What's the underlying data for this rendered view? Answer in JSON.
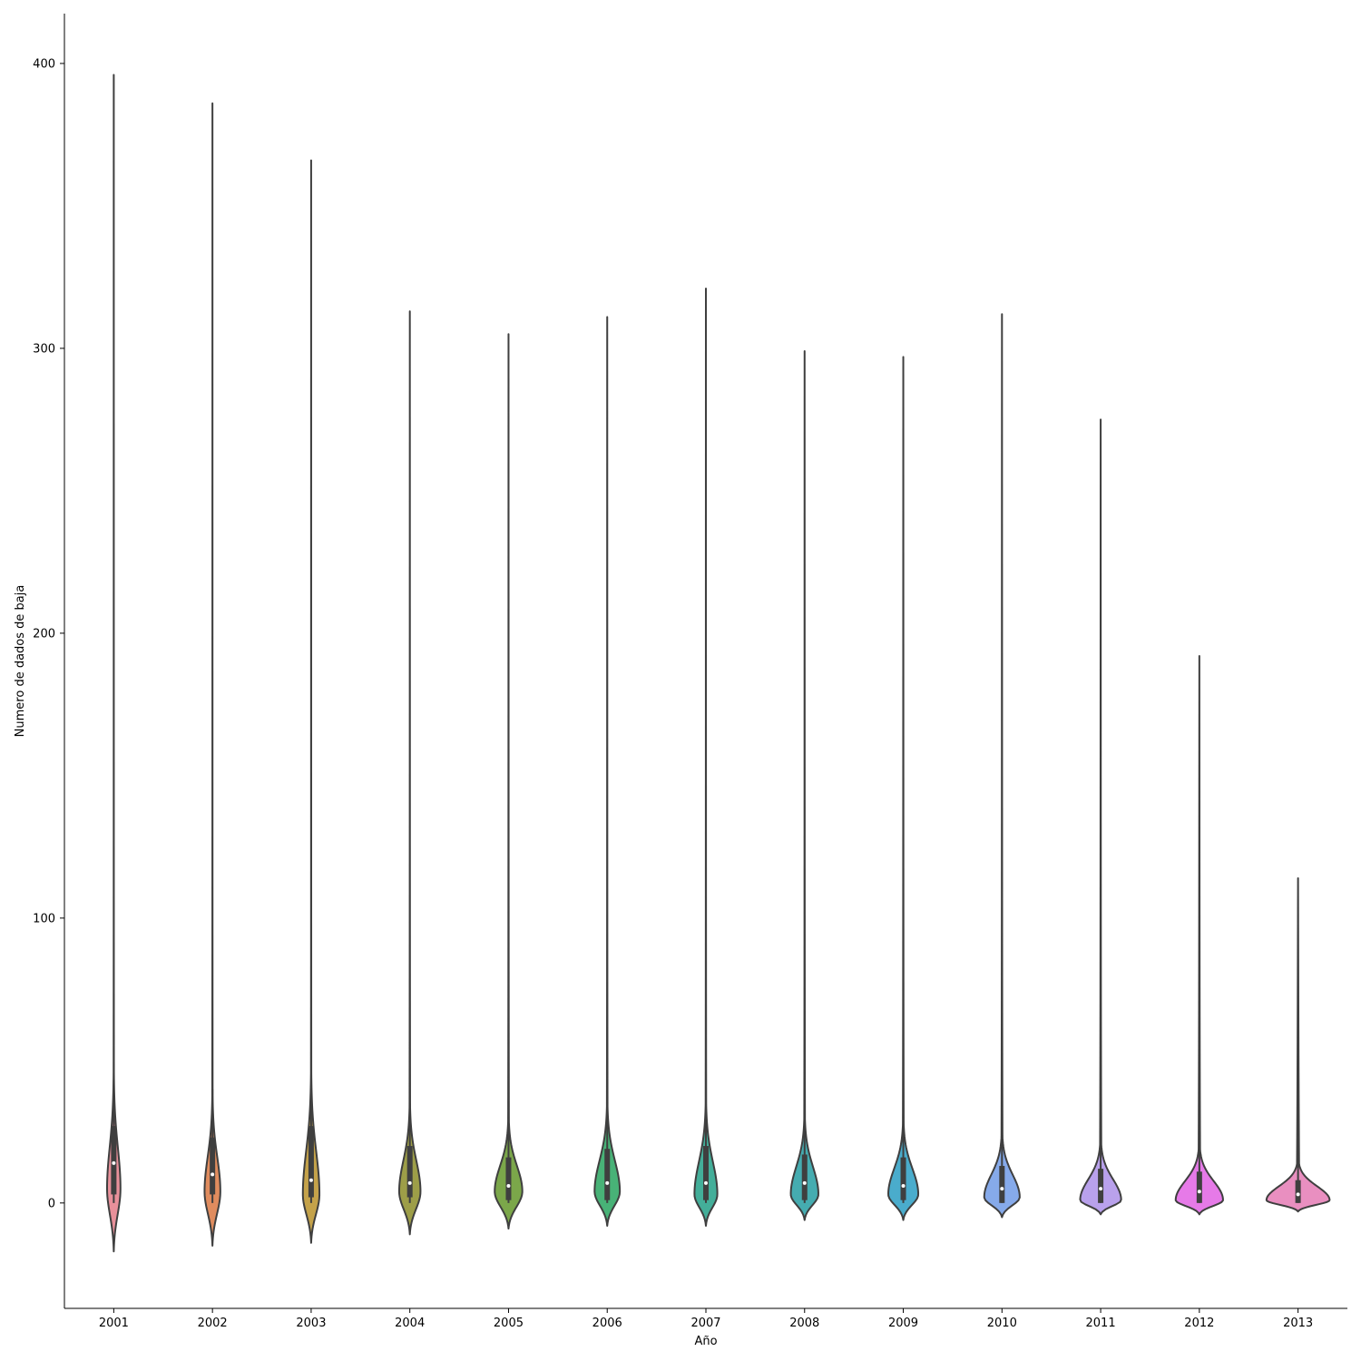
{
  "chart_data": {
    "type": "violin",
    "title": "",
    "xlabel": "Año",
    "ylabel": "Numero de dados de baja",
    "categories": [
      "2001",
      "2002",
      "2003",
      "2004",
      "2005",
      "2006",
      "2007",
      "2008",
      "2009",
      "2010",
      "2011",
      "2012",
      "2013"
    ],
    "ylim": [
      -37,
      417.5
    ],
    "yticks": [
      0,
      100,
      200,
      300,
      400
    ],
    "grid": false,
    "legend": "none",
    "violins": [
      {
        "category": "2001",
        "color": "#e8909a",
        "min": -17,
        "max": 396,
        "median": 14,
        "q1": 3,
        "q3": 27,
        "whisker_low": 0,
        "whisker_high": 43,
        "peak": 5,
        "peak_width": 0.17
      },
      {
        "category": "2002",
        "color": "#e08c5e",
        "min": -15,
        "max": 386,
        "median": 10,
        "q1": 3,
        "q3": 23,
        "whisker_low": 0,
        "whisker_high": 40,
        "peak": 4,
        "peak_width": 0.2
      },
      {
        "category": "2003",
        "color": "#c4a24a",
        "min": -14,
        "max": 366,
        "median": 8,
        "q1": 2,
        "q3": 27,
        "whisker_low": 0,
        "whisker_high": 40,
        "peak": 3,
        "peak_width": 0.21
      },
      {
        "category": "2004",
        "color": "#9d9e48",
        "min": -11,
        "max": 313,
        "median": 7,
        "q1": 2,
        "q3": 20,
        "whisker_low": 0,
        "whisker_high": 35,
        "peak": 4,
        "peak_width": 0.27
      },
      {
        "category": "2005",
        "color": "#7ba74a",
        "min": -9,
        "max": 305,
        "median": 6,
        "q1": 1,
        "q3": 16,
        "whisker_low": 0,
        "whisker_high": 30,
        "peak": 4,
        "peak_width": 0.35
      },
      {
        "category": "2006",
        "color": "#48b277",
        "min": -8,
        "max": 311,
        "median": 7,
        "q1": 1,
        "q3": 19,
        "whisker_low": 0,
        "whisker_high": 30,
        "peak": 4,
        "peak_width": 0.32
      },
      {
        "category": "2007",
        "color": "#43ae99",
        "min": -8,
        "max": 321,
        "median": 7,
        "q1": 1,
        "q3": 20,
        "whisker_low": 0,
        "whisker_high": 30,
        "peak": 3,
        "peak_width": 0.29
      },
      {
        "category": "2008",
        "color": "#45acb0",
        "min": -6,
        "max": 299,
        "median": 7,
        "q1": 1,
        "q3": 17,
        "whisker_low": 0,
        "whisker_high": 30,
        "peak": 3,
        "peak_width": 0.35
      },
      {
        "category": "2009",
        "color": "#4aaccc",
        "min": -6,
        "max": 297,
        "median": 6,
        "q1": 1,
        "q3": 16,
        "whisker_low": 0,
        "whisker_high": 30,
        "peak": 3,
        "peak_width": 0.38
      },
      {
        "category": "2010",
        "color": "#86aaea",
        "min": -5,
        "max": 312,
        "median": 5,
        "q1": 0,
        "q3": 13,
        "whisker_low": 0,
        "whisker_high": 28,
        "peak": 2,
        "peak_width": 0.45
      },
      {
        "category": "2011",
        "color": "#b9a1ec",
        "min": -4,
        "max": 275,
        "median": 5,
        "q1": 0,
        "q3": 12,
        "whisker_low": 0,
        "whisker_high": 28,
        "peak": 1,
        "peak_width": 0.52
      },
      {
        "category": "2012",
        "color": "#e67ae8",
        "min": -4,
        "max": 192,
        "median": 4,
        "q1": 0,
        "q3": 11,
        "whisker_low": 0,
        "whisker_high": 25,
        "peak": 1,
        "peak_width": 0.6
      },
      {
        "category": "2013",
        "color": "#e98fc0",
        "min": -3,
        "max": 114,
        "median": 3,
        "q1": 0,
        "q3": 8,
        "whisker_low": 0,
        "whisker_high": 20,
        "peak": 1,
        "peak_width": 0.8
      }
    ]
  }
}
